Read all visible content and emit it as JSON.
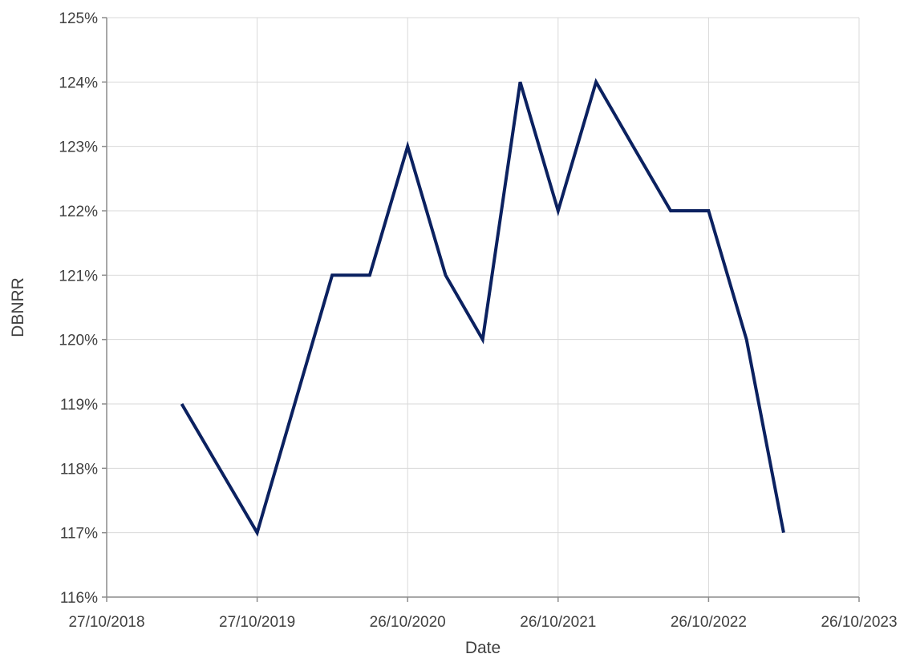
{
  "chart_data": {
    "type": "line",
    "title": "",
    "xlabel": "Date",
    "ylabel": "DBNRR",
    "x_tick_labels": [
      "27/10/2018",
      "27/10/2019",
      "26/10/2020",
      "26/10/2021",
      "26/10/2022",
      "26/10/2023"
    ],
    "y_tick_labels": [
      "116%",
      "117%",
      "118%",
      "119%",
      "120%",
      "121%",
      "122%",
      "123%",
      "124%",
      "125%"
    ],
    "xlim": [
      "2018-10-27",
      "2023-10-26"
    ],
    "ylim": [
      116,
      125
    ],
    "grid": true,
    "series": [
      {
        "color": "#0b2160",
        "x": [
          "2019-04-27",
          "2019-10-27",
          "2020-04-26",
          "2020-07-26",
          "2020-10-26",
          "2021-01-26",
          "2021-04-26",
          "2021-07-26",
          "2021-10-26",
          "2022-01-26",
          "2022-04-26",
          "2022-07-26",
          "2022-10-26",
          "2023-01-26",
          "2023-04-26"
        ],
        "y": [
          119,
          117,
          121,
          121,
          123,
          121,
          120,
          124,
          122,
          124,
          123,
          122,
          122,
          120,
          117
        ]
      }
    ]
  }
}
